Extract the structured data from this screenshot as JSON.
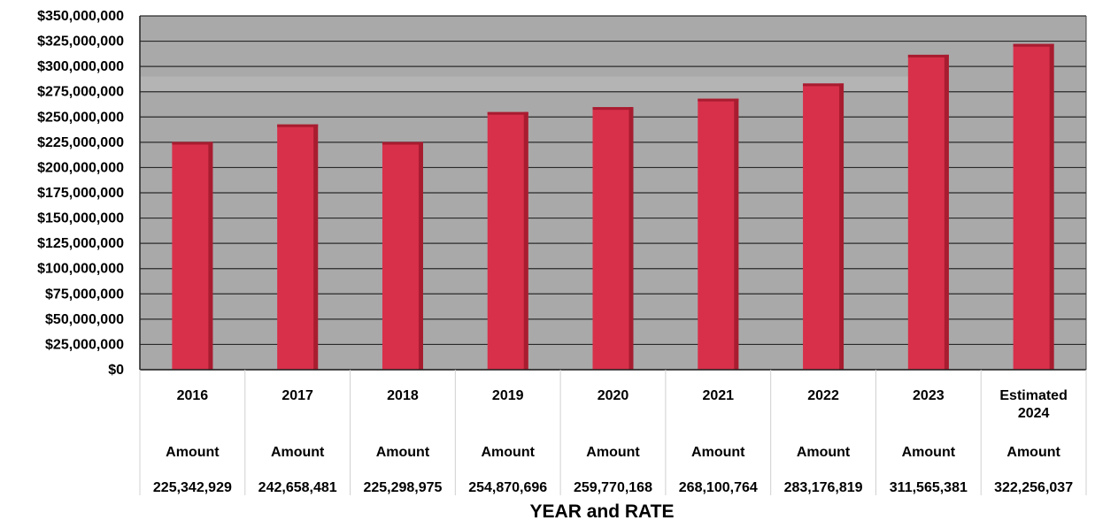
{
  "chart_data": {
    "type": "bar",
    "title": "",
    "xlabel": "YEAR and RATE",
    "ylabel": "",
    "ylim": [
      0,
      350000000
    ],
    "yticks": [
      "$0",
      "$25,000,000",
      "$50,000,000",
      "$75,000,000",
      "$100,000,000",
      "$125,000,000",
      "$150,000,000",
      "$175,000,000",
      "$200,000,000",
      "$225,000,000",
      "$250,000,000",
      "$275,000,000",
      "$300,000,000",
      "$325,000,000",
      "$350,000,000"
    ],
    "categories": [
      "2016",
      "2017",
      "2018",
      "2019",
      "2020",
      "2021",
      "2022",
      "2023",
      "Estimated 2024"
    ],
    "category_lines": [
      [
        "2016"
      ],
      [
        "2017"
      ],
      [
        "2018"
      ],
      [
        "2019"
      ],
      [
        "2020"
      ],
      [
        "2021"
      ],
      [
        "2022"
      ],
      [
        "2023"
      ],
      [
        "Estimated",
        "2024"
      ]
    ],
    "row_label": "Amount",
    "value_labels": [
      "225,342,929",
      "242,658,481",
      "225,298,975",
      "254,870,696",
      "259,770,168",
      "268,100,764",
      "283,176,819",
      "311,565,381",
      "322,256,037"
    ],
    "values": [
      225342929,
      242658481,
      225298975,
      254870696,
      259770168,
      268100764,
      283176819,
      311565381,
      322256037
    ],
    "grid": true,
    "legend": "none",
    "colors": {
      "bar": "#d8304a",
      "bar_dark": "#a81c30",
      "plot_bg": "#a9a9a9",
      "grid": "#2a2a2a"
    }
  }
}
